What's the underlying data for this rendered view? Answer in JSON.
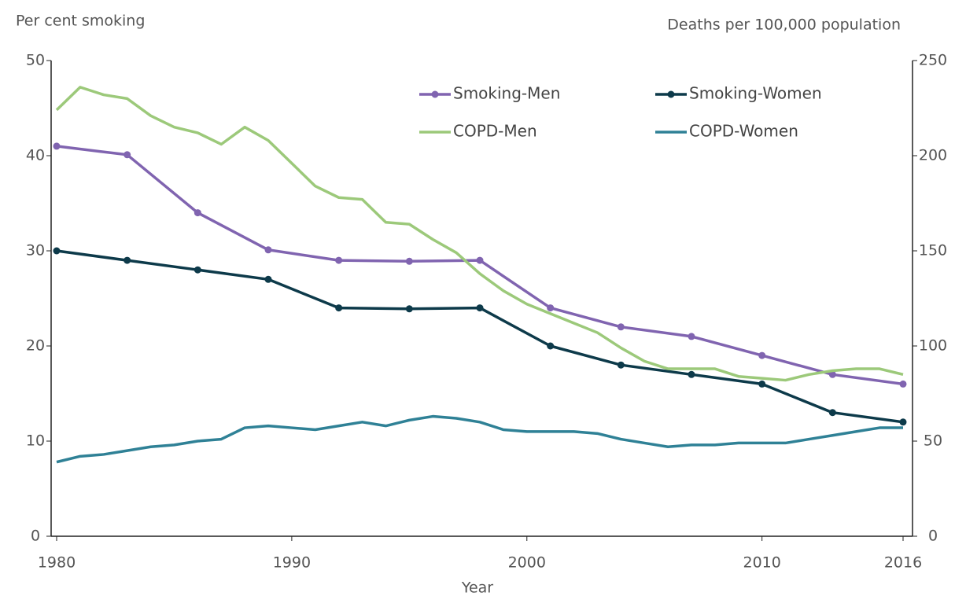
{
  "chart_data": {
    "type": "line",
    "xlabel": "Year",
    "ylabel": "Per cent smoking",
    "y2label": "Deaths per 100,000 population",
    "xlim": [
      1980,
      2016
    ],
    "xticks": [
      1980,
      1990,
      2000,
      2010,
      2016
    ],
    "ylim": [
      0,
      50
    ],
    "yticks": [
      0,
      10,
      20,
      30,
      40,
      50
    ],
    "y2lim": [
      0,
      250
    ],
    "y2ticks": [
      0,
      50,
      100,
      150,
      200,
      250
    ],
    "legend": "top",
    "series": [
      {
        "name": "Smoking-Men",
        "color": "#8064b0",
        "markers": true,
        "x": [
          1980,
          1983,
          1986,
          1989,
          1992,
          1995,
          1998,
          2001,
          2004,
          2007,
          2010,
          2013,
          2016
        ],
        "values": [
          41,
          40.1,
          34,
          30.1,
          29,
          28.9,
          29,
          24,
          22,
          21,
          19,
          17,
          16
        ]
      },
      {
        "name": "Smoking-Women",
        "color": "#0d3a4a",
        "markers": true,
        "x": [
          1980,
          1983,
          1986,
          1989,
          1992,
          1995,
          1998,
          2001,
          2004,
          2007,
          2010,
          2013,
          2016
        ],
        "values": [
          30,
          29,
          28,
          27,
          24,
          23.9,
          24,
          20,
          18,
          17,
          16,
          13,
          12
        ]
      },
      {
        "name": "COPD-Men",
        "color": "#9cc97a",
        "markers": false,
        "axis": "y2",
        "x": [
          1980,
          1981,
          1982,
          1983,
          1984,
          1985,
          1986,
          1987,
          1988,
          1989,
          1990,
          1991,
          1992,
          1993,
          1994,
          1995,
          1996,
          1997,
          1998,
          1999,
          2000,
          2001,
          2002,
          2003,
          2004,
          2005,
          2006,
          2007,
          2008,
          2009,
          2010,
          2011,
          2012,
          2013,
          2014,
          2015,
          2016
        ],
        "values": [
          224,
          236,
          232,
          230,
          221,
          215,
          212,
          206,
          215,
          208,
          196,
          184,
          178,
          177,
          165,
          164,
          156,
          149,
          138,
          129,
          122,
          117,
          112,
          107,
          99,
          92,
          88,
          88,
          88,
          84,
          83,
          82,
          85,
          87,
          88,
          88,
          85
        ]
      },
      {
        "name": "COPD-Women",
        "color": "#2f8196",
        "markers": false,
        "axis": "y2",
        "x": [
          1980,
          1981,
          1982,
          1983,
          1984,
          1985,
          1986,
          1987,
          1988,
          1989,
          1990,
          1991,
          1992,
          1993,
          1994,
          1995,
          1996,
          1997,
          1998,
          1999,
          2000,
          2001,
          2002,
          2003,
          2004,
          2005,
          2006,
          2007,
          2008,
          2009,
          2010,
          2011,
          2012,
          2013,
          2014,
          2015,
          2016
        ],
        "values": [
          39,
          42,
          43,
          45,
          47,
          48,
          50,
          51,
          57,
          58,
          57,
          56,
          58,
          60,
          58,
          61,
          63,
          62,
          60,
          56,
          55,
          55,
          55,
          54,
          51,
          49,
          47,
          48,
          48,
          49,
          49,
          49,
          51,
          53,
          55,
          57,
          57
        ]
      }
    ]
  }
}
